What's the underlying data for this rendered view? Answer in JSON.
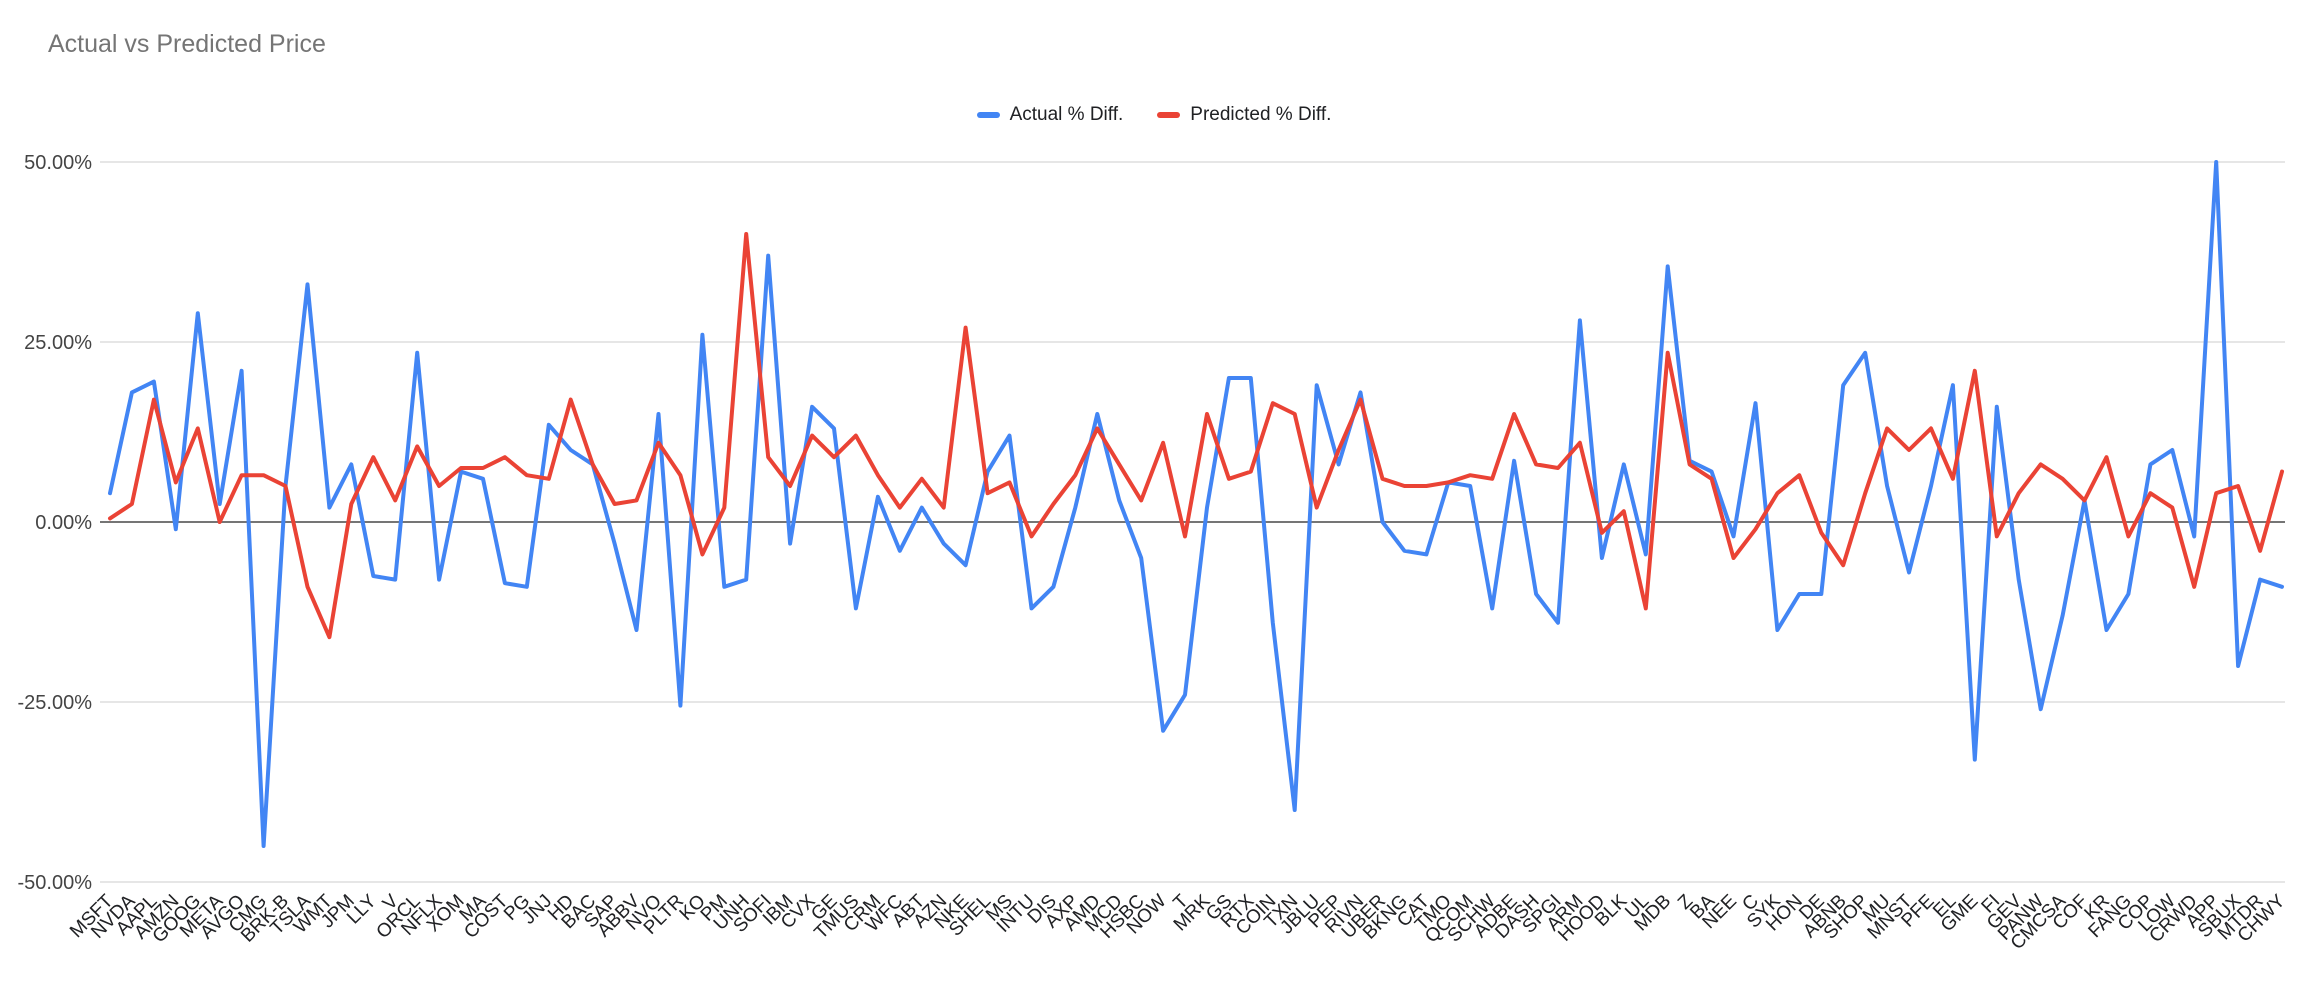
{
  "title": "Actual vs Predicted Price",
  "legend": {
    "position": "top-center",
    "items": [
      {
        "label": "Actual  % Diff.",
        "color": "#4285F4"
      },
      {
        "label": "Predicted % Diff.",
        "color": "#EA4335"
      }
    ]
  },
  "y_axis": {
    "tick_labels": [
      "50.00%",
      "25.00%",
      "0.00%",
      "-25.00%",
      "-50.00%"
    ],
    "tick_values": [
      50,
      25,
      0,
      -25,
      -50
    ]
  },
  "style": {
    "background": "#ffffff",
    "title_color": "#757575",
    "gridline_color": "#e6e6e6",
    "zero_line_color": "#757575",
    "axis_label_color": "#202124",
    "actual_color": "#4285F4",
    "predicted_color": "#EA4335"
  },
  "chart_data": {
    "type": "line",
    "title": "Actual vs Predicted Price",
    "xlabel": "",
    "ylabel": "",
    "ylim": [
      -50,
      50
    ],
    "y_tick_step": 25,
    "y_tick_format": "percent_2dp",
    "grid": true,
    "legend_position": "top-center",
    "categories": [
      "MSFT",
      "NVDA",
      "AAPL",
      "AMZN",
      "GOOG",
      "META",
      "AVGO",
      "CMG",
      "BRK-B",
      "TSLA",
      "WMT",
      "JPM",
      "LLY",
      "V",
      "ORCL",
      "NFLX",
      "XOM",
      "MA",
      "COST",
      "PG",
      "JNJ",
      "HD",
      "BAC",
      "SAP",
      "ABBV",
      "NVO",
      "PLTR",
      "KO",
      "PM",
      "UNH",
      "SOFI",
      "IBM",
      "CVX",
      "GE",
      "TMUS",
      "CRM",
      "WFC",
      "ABT",
      "AZN",
      "NKE",
      "SHEL",
      "MS",
      "INTU",
      "DIS",
      "AXP",
      "AMD",
      "MCD",
      "HSBC",
      "NOW",
      "T",
      "MRK",
      "GS",
      "RTX",
      "COIN",
      "TXN",
      "JBLU",
      "PEP",
      "RIVN",
      "UBER",
      "BKNG",
      "CAT",
      "TMO",
      "QCOM",
      "SCHW",
      "ADBE",
      "DASH",
      "SPGI",
      "ARM",
      "HOOD",
      "BLK",
      "UL",
      "MDB",
      "Z",
      "BA",
      "NEE",
      "C",
      "SYK",
      "HON",
      "DE",
      "ABNB",
      "SHOP",
      "MU",
      "MNST",
      "PFE",
      "EL",
      "GME",
      "FI",
      "GEV",
      "PANW",
      "CMCSA",
      "COF",
      "KR",
      "FANG",
      "COP",
      "LOW",
      "CRWD",
      "APP",
      "SBUX",
      "MTDR",
      "CHWY"
    ],
    "series": [
      {
        "name": "Actual  % Diff.",
        "color": "#4285F4",
        "values": [
          4,
          18,
          19.5,
          -1,
          29,
          2.5,
          21,
          -45,
          5,
          33,
          2,
          8,
          -7.5,
          -8,
          23.5,
          -8,
          7,
          6,
          -8.5,
          -9,
          13.5,
          10,
          8,
          -3,
          -15,
          15,
          -25.5,
          26,
          -9,
          -8,
          37,
          -3,
          16,
          13,
          -12,
          3.5,
          -4,
          2,
          -3,
          -6,
          7,
          12,
          -12,
          -9,
          2,
          15,
          3,
          -5,
          -29,
          -24,
          2,
          20,
          20,
          -14,
          -40,
          19,
          8,
          18,
          0,
          -4,
          -4.5,
          5.5,
          5,
          -12,
          8.5,
          -10,
          -14,
          28,
          -5,
          8,
          -4.5,
          35.5,
          8.5,
          7,
          -2,
          16.5,
          -15,
          -10,
          -10,
          19,
          23.5,
          5,
          -7,
          5,
          19,
          -33,
          16,
          -8,
          -26,
          -13,
          3,
          -15,
          -10,
          8,
          10,
          -2,
          50,
          -20,
          -8,
          -9
        ]
      },
      {
        "name": "Predicted % Diff.",
        "color": "#EA4335",
        "values": [
          0.5,
          2.5,
          17,
          5.5,
          13,
          0,
          6.5,
          6.5,
          5,
          -9,
          -16,
          2.5,
          9,
          3,
          10.5,
          5,
          7.5,
          7.5,
          9,
          6.5,
          6,
          17,
          8,
          2.5,
          3,
          11,
          6.5,
          -4.5,
          2,
          40,
          9,
          5,
          12,
          9,
          12,
          6.5,
          2,
          6,
          2,
          27,
          4,
          5.5,
          -2,
          2.5,
          6.5,
          13,
          8,
          3,
          11,
          -2,
          15,
          6,
          7,
          16.5,
          15,
          2,
          10,
          17,
          6,
          5,
          5,
          5.5,
          6.5,
          6,
          15,
          8,
          7.5,
          11,
          -1.5,
          1.5,
          -12,
          23.5,
          8,
          6,
          -5,
          -1,
          4,
          6.5,
          -1.5,
          -6,
          4,
          13,
          10,
          13,
          6,
          21,
          -2,
          4,
          8,
          6,
          3,
          9,
          -2,
          4,
          2,
          -9,
          4,
          5,
          -4,
          7
        ]
      }
    ]
  }
}
